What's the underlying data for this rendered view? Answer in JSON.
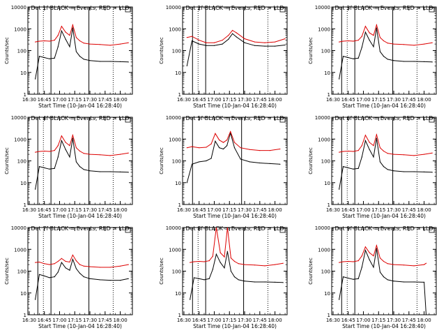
{
  "figure": {
    "ylabel": "Counts/sec",
    "xlabel": "Start Time (10-Jan-04 16:28:40)",
    "title_suffix": "BLACK = Events, RED = LLD",
    "x_tick_labels": [
      "16:30",
      "16:45",
      "17:00",
      "17:15",
      "17:30",
      "17:45",
      "18:00"
    ],
    "y_tick_labels": [
      "10000",
      "1000",
      "100",
      "10",
      "1"
    ],
    "colors": {
      "events": "#000000",
      "lld": "#dd0000",
      "axes": "#000000"
    }
  },
  "chart_data": [
    {
      "type": "line",
      "detector": "Det 1f",
      "title": "Det 1f BLACK = Events, RED = LLD",
      "xlabel": "Start Time (10-Jan-04 16:28:40)",
      "ylabel": "Counts/sec",
      "xlim": [
        "16:28:40",
        "18:12:00"
      ],
      "ylim": [
        1,
        10000
      ],
      "yscale": "log",
      "solid_vlines": [
        "16:38:30",
        "16:51:30",
        "17:29:00"
      ],
      "dotted_vlines": [
        "16:44:00",
        "17:53:00"
      ],
      "x": [
        "16:36:00",
        "16:40:00",
        "16:45:00",
        "16:50:00",
        "16:55:00",
        "16:58:30",
        "17:02:00",
        "17:06:00",
        "17:10:00",
        "17:13:00",
        "17:16:30",
        "17:20:00",
        "17:24:00",
        "17:30:00",
        "17:40:00",
        "17:50:00",
        "18:00:00",
        "18:08:00"
      ],
      "series": [
        {
          "name": "Events",
          "values": [
            5,
            55,
            48,
            42,
            45,
            150,
            800,
            330,
            150,
            1100,
            90,
            55,
            40,
            35,
            32,
            32,
            31,
            30
          ]
        },
        {
          "name": "LLD",
          "values": [
            250,
            270,
            280,
            270,
            300,
            500,
            1300,
            700,
            500,
            1500,
            400,
            280,
            220,
            200,
            190,
            175,
            200,
            230
          ]
        }
      ]
    },
    {
      "type": "line",
      "detector": "Det 2f",
      "title": "Det 2f BLACK = Events, RED = LLD",
      "xlabel": "Start Time (10-Jan-04 16:28:40)",
      "ylabel": "Counts/sec",
      "xlim": [
        "16:28:40",
        "18:12:00"
      ],
      "ylim": [
        1,
        10000
      ],
      "yscale": "log",
      "solid_vlines": [
        "16:38:30",
        "16:51:30",
        "17:29:00"
      ],
      "dotted_vlines": [
        "16:44:00",
        "17:53:00"
      ],
      "x": [
        "16:33:00",
        "16:38:00",
        "16:45:00",
        "16:52:00",
        "17:00:00",
        "17:08:00",
        "17:14:00",
        "17:18:00",
        "17:22:00",
        "17:30:00",
        "17:40:00",
        "17:50:00",
        "18:00:00",
        "18:10:00"
      ],
      "series": [
        {
          "name": "Events",
          "values": [
            20,
            280,
            200,
            170,
            170,
            200,
            330,
            600,
            420,
            230,
            170,
            160,
            160,
            180
          ]
        },
        {
          "name": "LLD",
          "values": [
            400,
            450,
            300,
            230,
            230,
            300,
            500,
            850,
            650,
            350,
            250,
            230,
            250,
            350
          ]
        }
      ]
    },
    {
      "type": "line",
      "detector": "Det 3f",
      "title": "Det 3f BLACK = Events, RED = LLD",
      "xlabel": "Start Time (10-Jan-04 16:28:40)",
      "ylabel": "Counts/sec",
      "xlim": [
        "16:28:40",
        "18:12:00"
      ],
      "ylim": [
        1,
        10000
      ],
      "yscale": "log",
      "solid_vlines": [
        "16:38:30",
        "16:51:30",
        "17:29:00"
      ],
      "dotted_vlines": [
        "16:44:00",
        "17:53:00"
      ],
      "x": [
        "16:36:00",
        "16:40:00",
        "16:45:00",
        "16:50:00",
        "16:55:00",
        "16:58:30",
        "17:02:00",
        "17:06:00",
        "17:10:00",
        "17:13:00",
        "17:16:30",
        "17:20:00",
        "17:24:00",
        "17:30:00",
        "17:40:00",
        "17:50:00",
        "18:00:00",
        "18:08:00"
      ],
      "series": [
        {
          "name": "Events",
          "values": [
            5,
            55,
            48,
            42,
            45,
            140,
            700,
            300,
            150,
            1100,
            90,
            55,
            40,
            35,
            32,
            32,
            31,
            30
          ]
        },
        {
          "name": "LLD",
          "values": [
            250,
            270,
            280,
            270,
            300,
            450,
            1300,
            650,
            500,
            1500,
            400,
            280,
            220,
            200,
            190,
            175,
            200,
            230
          ]
        }
      ]
    },
    {
      "type": "line",
      "detector": "Det 4f",
      "title": "Det 4f BLACK = Events, RED = LLD",
      "xlabel": "Start Time (10-Jan-04 16:28:40)",
      "ylabel": "Counts/sec",
      "xlim": [
        "16:28:40",
        "18:12:00"
      ],
      "ylim": [
        1,
        10000
      ],
      "yscale": "log",
      "solid_vlines": [
        "16:38:30",
        "16:51:30",
        "17:29:00"
      ],
      "dotted_vlines": [
        "16:44:00",
        "17:53:00"
      ],
      "x": [
        "16:36:00",
        "16:40:00",
        "16:45:00",
        "16:50:00",
        "16:55:00",
        "16:58:30",
        "17:02:00",
        "17:06:00",
        "17:10:00",
        "17:13:00",
        "17:16:30",
        "17:20:00",
        "17:24:00",
        "17:30:00",
        "17:40:00",
        "17:50:00",
        "18:00:00",
        "18:08:00"
      ],
      "series": [
        {
          "name": "Events",
          "values": [
            5,
            55,
            48,
            42,
            45,
            150,
            850,
            330,
            150,
            1100,
            90,
            55,
            40,
            35,
            32,
            32,
            31,
            30
          ]
        },
        {
          "name": "LLD",
          "values": [
            250,
            270,
            280,
            270,
            300,
            500,
            1400,
            700,
            500,
            1500,
            400,
            280,
            220,
            200,
            190,
            175,
            200,
            230
          ]
        }
      ]
    },
    {
      "type": "line",
      "detector": "Det 5f",
      "title": "Det 5f BLACK = Events, RED = LLD",
      "xlabel": "Start Time (10-Jan-04 16:28:40)",
      "ylabel": "Counts/sec",
      "xlim": [
        "16:28:40",
        "18:12:00"
      ],
      "ylim": [
        1,
        10000
      ],
      "yscale": "log",
      "solid_vlines": [
        "16:38:30",
        "17:27:00"
      ],
      "dotted_vlines": [],
      "x": [
        "16:33:00",
        "16:38:00",
        "16:45:00",
        "16:52:00",
        "16:57:00",
        "17:01:00",
        "17:05:00",
        "17:09:00",
        "17:12:30",
        "17:16:00",
        "17:20:00",
        "17:26:00",
        "17:35:00",
        "17:45:00",
        "17:55:00",
        "18:05:00"
      ],
      "series": [
        {
          "name": "Events",
          "values": [
            10,
            70,
            90,
            100,
            130,
            800,
            400,
            350,
            500,
            1900,
            400,
            120,
            90,
            80,
            75,
            70
          ]
        },
        {
          "name": "LLD",
          "values": [
            400,
            450,
            400,
            420,
            600,
            1800,
            900,
            700,
            900,
            2200,
            700,
            400,
            330,
            300,
            300,
            350
          ]
        }
      ]
    },
    {
      "type": "line",
      "detector": "Det 6f",
      "title": "Det 6f BLACK = Events, RED = LLD",
      "xlabel": "Start Time (10-Jan-04 16:28:40)",
      "ylabel": "Counts/sec",
      "xlim": [
        "16:28:40",
        "18:12:00"
      ],
      "ylim": [
        1,
        10000
      ],
      "yscale": "log",
      "solid_vlines": [
        "16:38:30",
        "16:51:30",
        "17:29:00"
      ],
      "dotted_vlines": [
        "16:44:00",
        "17:53:00"
      ],
      "x": [
        "16:36:00",
        "16:40:00",
        "16:45:00",
        "16:50:00",
        "16:55:00",
        "16:58:30",
        "17:02:00",
        "17:06:00",
        "17:10:00",
        "17:13:00",
        "17:16:30",
        "17:20:00",
        "17:24:00",
        "17:30:00",
        "17:40:00",
        "17:50:00",
        "18:00:00",
        "18:08:00"
      ],
      "series": [
        {
          "name": "Events",
          "values": [
            5,
            55,
            48,
            42,
            45,
            150,
            850,
            330,
            150,
            1100,
            90,
            55,
            40,
            35,
            32,
            32,
            31,
            30
          ]
        },
        {
          "name": "LLD",
          "values": [
            250,
            270,
            280,
            270,
            300,
            500,
            1500,
            700,
            500,
            1600,
            400,
            280,
            220,
            200,
            190,
            175,
            200,
            230
          ]
        }
      ]
    },
    {
      "type": "line",
      "detector": "Det 7f",
      "title": "Det 7f BLACK = Events, RED = LLD",
      "xlabel": "Start Time (10-Jan-04 16:28:40)",
      "ylabel": "Counts/sec",
      "xlim": [
        "16:28:40",
        "18:12:00"
      ],
      "ylim": [
        1,
        10000
      ],
      "yscale": "log",
      "solid_vlines": [
        "16:38:30",
        "16:51:30",
        "17:29:00"
      ],
      "dotted_vlines": [
        "16:44:00",
        "17:53:00"
      ],
      "x": [
        "16:36:00",
        "16:40:00",
        "16:45:00",
        "16:50:00",
        "16:55:00",
        "16:58:30",
        "17:02:00",
        "17:06:00",
        "17:10:00",
        "17:13:00",
        "17:16:30",
        "17:20:00",
        "17:24:00",
        "17:30:00",
        "17:40:00",
        "17:50:00",
        "18:00:00",
        "18:08:00"
      ],
      "series": [
        {
          "name": "Events",
          "values": [
            5,
            70,
            60,
            50,
            55,
            90,
            250,
            140,
            110,
            350,
            130,
            80,
            55,
            45,
            40,
            38,
            38,
            45
          ]
        },
        {
          "name": "LLD",
          "values": [
            250,
            260,
            220,
            200,
            220,
            280,
            380,
            280,
            260,
            550,
            300,
            200,
            170,
            160,
            150,
            150,
            170,
            200
          ]
        }
      ]
    },
    {
      "type": "line",
      "detector": "Det 8f",
      "title": "Det 8f BLACK = Events, RED = LLD",
      "xlabel": "Start Time (10-Jan-04 16:28:40)",
      "ylabel": "Counts/sec",
      "xlim": [
        "16:28:40",
        "18:12:00"
      ],
      "ylim": [
        1,
        10000
      ],
      "yscale": "log",
      "solid_vlines": [
        "16:38:30",
        "16:51:30",
        "17:29:00"
      ],
      "dotted_vlines": [
        "16:44:00",
        "17:53:00"
      ],
      "x": [
        "16:36:00",
        "16:40:00",
        "16:45:00",
        "16:50:00",
        "16:55:00",
        "16:58:30",
        "17:02:00",
        "17:06:00",
        "17:10:00",
        "17:13:00",
        "17:16:30",
        "17:20:00",
        "17:24:00",
        "17:30:00",
        "17:40:00",
        "17:50:00",
        "18:00:00",
        "18:08:00"
      ],
      "series": [
        {
          "name": "Events",
          "values": [
            5,
            50,
            45,
            40,
            45,
            120,
            600,
            250,
            140,
            800,
            100,
            55,
            40,
            35,
            32,
            32,
            31,
            30
          ]
        },
        {
          "name": "LLD",
          "values": [
            250,
            270,
            280,
            270,
            300,
            480,
            10000,
            700,
            450,
            10000,
            400,
            280,
            220,
            200,
            190,
            175,
            200,
            230
          ]
        }
      ]
    },
    {
      "type": "line",
      "detector": "Det 9f",
      "title": "Det 9f BLACK = Events, RED = LLD",
      "xlabel": "Start Time (10-Jan-04 16:28:40)",
      "ylabel": "Counts/sec",
      "xlim": [
        "16:28:40",
        "18:12:00"
      ],
      "ylim": [
        1,
        10000
      ],
      "yscale": "log",
      "solid_vlines": [
        "16:38:30",
        "16:51:30",
        "17:29:00"
      ],
      "dotted_vlines": [
        "16:44:00",
        "17:53:00"
      ],
      "x": [
        "16:36:00",
        "16:40:00",
        "16:45:00",
        "16:50:00",
        "16:55:00",
        "16:58:30",
        "17:02:00",
        "17:06:00",
        "17:10:00",
        "17:13:00",
        "17:16:30",
        "17:20:00",
        "17:24:00",
        "17:30:00",
        "17:40:00",
        "17:50:00",
        "18:00:00",
        "18:02:00"
      ],
      "series": [
        {
          "name": "Events",
          "values": [
            5,
            55,
            48,
            42,
            45,
            150,
            900,
            330,
            150,
            1100,
            90,
            55,
            40,
            35,
            32,
            32,
            31,
            1
          ]
        },
        {
          "name": "LLD",
          "values": [
            250,
            270,
            280,
            270,
            300,
            500,
            1300,
            700,
            500,
            1500,
            400,
            280,
            220,
            200,
            190,
            175,
            200,
            230
          ]
        }
      ]
    }
  ]
}
